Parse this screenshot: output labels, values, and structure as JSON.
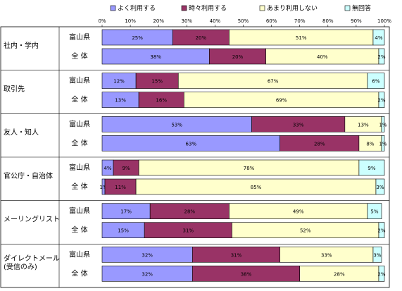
{
  "chart_data": {
    "type": "stacked-bar-horizontal",
    "groups": [
      [
        "社内・学内"
      ],
      [
        "取引先"
      ],
      [
        "友人・知人"
      ],
      [
        "官公庁・自治体"
      ],
      [
        "メーリングリスト"
      ],
      [
        "ダイレクトメール",
        "(受信のみ)"
      ]
    ],
    "categories": [
      "富山県",
      "全 体",
      "富山県",
      "全 体",
      "富山県",
      "全 体",
      "富山県",
      "全 体",
      "富山県",
      "全 体",
      "富山県",
      "全 体"
    ],
    "series": [
      {
        "name": "よく利用する",
        "color": "#9999ff",
        "values": [
          25,
          38,
          12,
          13,
          53,
          63,
          4,
          1,
          17,
          15,
          32,
          32
        ],
        "value_labels": [
          "25%",
          "38%",
          "12%",
          "13%",
          "53%",
          "63%",
          "4%",
          "1%",
          "17%",
          "15%",
          "32%",
          "32%"
        ]
      },
      {
        "name": "時々利用する",
        "color": "#993366",
        "values": [
          20,
          20,
          15,
          16,
          33,
          28,
          9,
          11,
          28,
          31,
          31,
          38
        ],
        "value_labels": [
          "20%",
          "20%",
          "15%",
          "16%",
          "33%",
          "28%",
          "9%",
          "11%",
          "28%",
          "31%",
          "31%",
          "38%"
        ]
      },
      {
        "name": "あまり利用しない",
        "color": "#ffffcc",
        "values": [
          51,
          40,
          67,
          69,
          13,
          8,
          78,
          85,
          49,
          52,
          33,
          28
        ],
        "value_labels": [
          "51%",
          "40%",
          "67%",
          "69%",
          "13%",
          "8%",
          "78%",
          "85%",
          "49%",
          "52%",
          "33%",
          "28%"
        ]
      },
      {
        "name": "無回答",
        "color": "#ccffff",
        "values": [
          4,
          2,
          6,
          2,
          1,
          1,
          9,
          3,
          5,
          2,
          3,
          2
        ],
        "value_labels": [
          "4%",
          "2%",
          "6%",
          "2%",
          "1%",
          "1%",
          "9%",
          "3%",
          "5%",
          "2%",
          "3%",
          "2%"
        ]
      }
    ],
    "xlim": [
      0,
      100
    ],
    "xticks": [
      {
        "value": 0,
        "label": "0%"
      },
      {
        "value": 10,
        "label": "10%"
      },
      {
        "value": 20,
        "label": "20%"
      },
      {
        "value": 30,
        "label": "30%"
      },
      {
        "value": 40,
        "label": "40%"
      },
      {
        "value": 50,
        "label": "50%"
      },
      {
        "value": 60,
        "label": "60%"
      },
      {
        "value": 70,
        "label": "70%"
      },
      {
        "value": 80,
        "label": "80%"
      },
      {
        "value": 90,
        "label": "90%"
      },
      {
        "value": 100,
        "label": "100%"
      }
    ]
  }
}
